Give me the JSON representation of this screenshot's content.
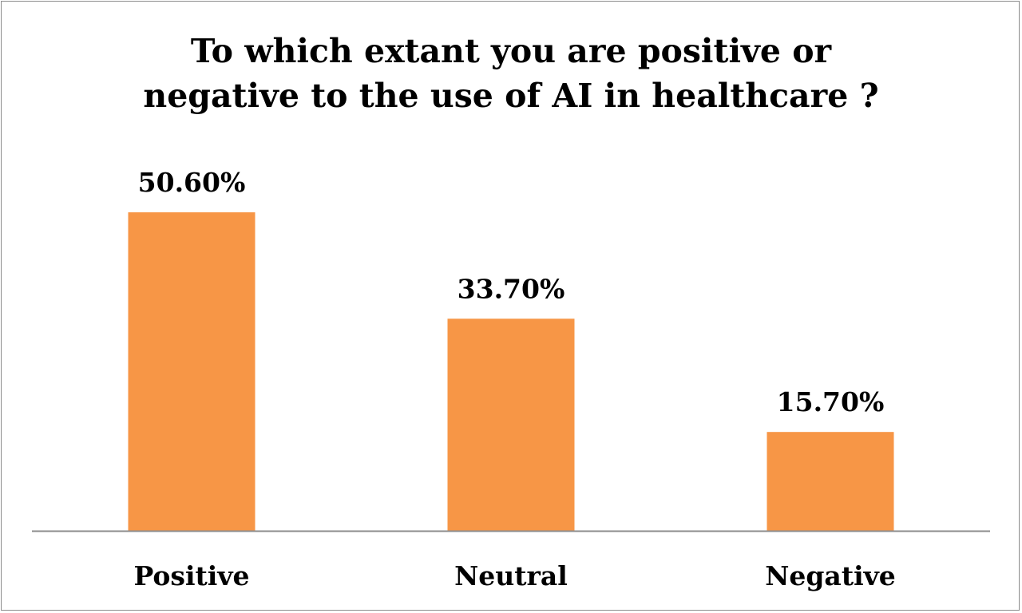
{
  "chart_data": {
    "type": "bar",
    "title_lines": [
      "To which extant you are positive or",
      "negative to the use of AI in healthcare ?"
    ],
    "categories": [
      "Positive",
      "Neutral",
      "Negative"
    ],
    "values": [
      50.6,
      33.7,
      15.7
    ],
    "data_labels": [
      "50.60%",
      "33.70%",
      "15.70%"
    ],
    "ylim": [
      0,
      60
    ],
    "grid": false,
    "legend": "none",
    "colors": {
      "bar": "#F79646",
      "axis": "#8c8c8c",
      "text": "#000000"
    }
  }
}
